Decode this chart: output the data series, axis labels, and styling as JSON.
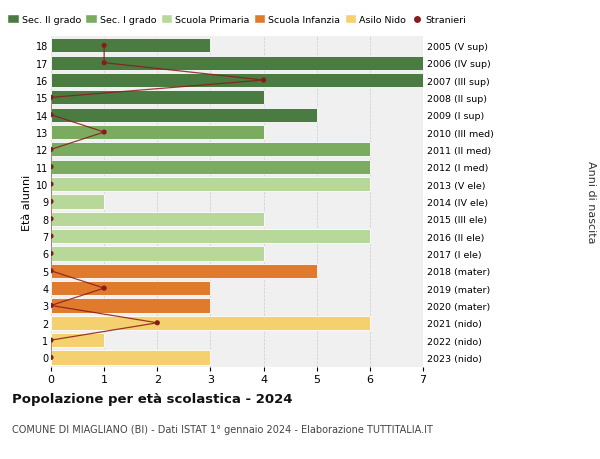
{
  "ages": [
    18,
    17,
    16,
    15,
    14,
    13,
    12,
    11,
    10,
    9,
    8,
    7,
    6,
    5,
    4,
    3,
    2,
    1,
    0
  ],
  "right_labels": [
    "2005 (V sup)",
    "2006 (IV sup)",
    "2007 (III sup)",
    "2008 (II sup)",
    "2009 (I sup)",
    "2010 (III med)",
    "2011 (II med)",
    "2012 (I med)",
    "2013 (V ele)",
    "2014 (IV ele)",
    "2015 (III ele)",
    "2016 (II ele)",
    "2017 (I ele)",
    "2018 (mater)",
    "2019 (mater)",
    "2020 (mater)",
    "2021 (nido)",
    "2022 (nido)",
    "2023 (nido)"
  ],
  "bar_values": [
    3,
    7,
    7,
    4,
    5,
    4,
    6,
    6,
    6,
    1,
    4,
    6,
    4,
    5,
    3,
    3,
    6,
    1,
    3
  ],
  "bar_colors": [
    "#4a7c41",
    "#4a7c41",
    "#4a7c41",
    "#4a7c41",
    "#4a7c41",
    "#7aab5e",
    "#7aab5e",
    "#7aab5e",
    "#b8d89a",
    "#b8d89a",
    "#b8d89a",
    "#b8d89a",
    "#b8d89a",
    "#e07b2e",
    "#e07b2e",
    "#e07b2e",
    "#f5d06e",
    "#f5d06e",
    "#f5d06e"
  ],
  "stranieri_values": [
    1,
    1,
    4,
    0,
    0,
    1,
    0,
    0,
    0,
    0,
    0,
    0,
    0,
    0,
    1,
    0,
    2,
    0,
    0
  ],
  "stranieri_color": "#8b1a1a",
  "legend_labels": [
    "Sec. II grado",
    "Sec. I grado",
    "Scuola Primaria",
    "Scuola Infanzia",
    "Asilo Nido",
    "Stranieri"
  ],
  "legend_colors": [
    "#4a7c41",
    "#7aab5e",
    "#b8d89a",
    "#e07b2e",
    "#f5d06e",
    "#8b1a1a"
  ],
  "ylabel": "Età alunni",
  "ylabel_right": "Anni di nascita",
  "title": "Popolazione per età scolastica - 2024",
  "subtitle": "COMUNE DI MIAGLIANO (BI) - Dati ISTAT 1° gennaio 2024 - Elaborazione TUTTITALIA.IT",
  "xlim": [
    0,
    7
  ],
  "background_color": "#ffffff",
  "plot_bg_color": "#f0f0f0"
}
